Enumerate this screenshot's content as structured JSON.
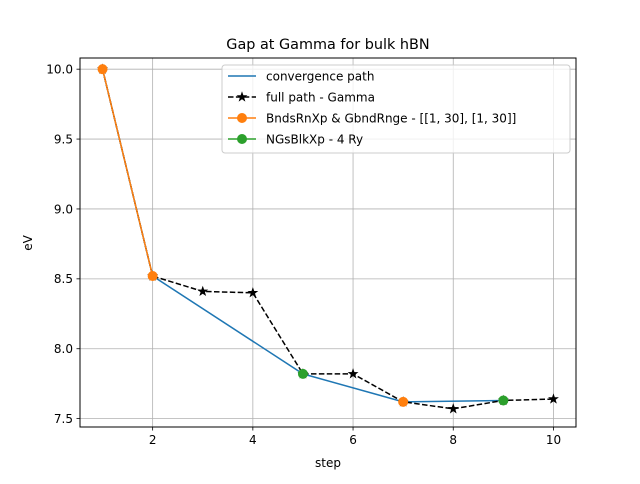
{
  "chart_data": {
    "type": "line",
    "title": "Gap at Gamma for bulk hBN",
    "xlabel": "step",
    "ylabel": "eV",
    "xlim": [
      0.55,
      10.45
    ],
    "ylim": [
      7.44,
      10.08
    ],
    "xticks": [
      2,
      4,
      6,
      8,
      10
    ],
    "yticks": [
      7.5,
      8.0,
      8.5,
      9.0,
      9.5,
      10.0
    ],
    "xtick_labels": [
      "2",
      "4",
      "6",
      "8",
      "10"
    ],
    "ytick_labels": [
      "7.5",
      "8.0",
      "8.5",
      "9.0",
      "9.5",
      "10.0"
    ],
    "grid": true,
    "legend_position": "top-right",
    "series": [
      {
        "name": "convergence path",
        "style": "solid",
        "marker": "none",
        "color": "#1f77b4",
        "x": [
          1,
          2,
          5,
          7,
          9
        ],
        "y": [
          10.0,
          8.52,
          7.82,
          7.62,
          7.63
        ]
      },
      {
        "name": "full path - Gamma",
        "style": "dashed",
        "marker": "star",
        "color": "#000000",
        "x": [
          1,
          2,
          3,
          4,
          5,
          6,
          7,
          8,
          9,
          10
        ],
        "y": [
          10.0,
          8.52,
          8.41,
          8.4,
          7.82,
          7.82,
          7.62,
          7.57,
          7.63,
          7.64
        ]
      },
      {
        "name": "BndsRnXp & GbndRnge  - [[1, 30], [1, 30]]",
        "style": "solid",
        "marker": "circle",
        "color": "#ff7f0e",
        "x": [
          1,
          2
        ],
        "y": [
          10.0,
          8.52
        ],
        "extra_points": [
          {
            "x": 7,
            "y": 7.62
          }
        ]
      },
      {
        "name": "NGsBlkXp - 4 Ry",
        "style": "none",
        "marker": "circle",
        "color": "#2ca02c",
        "x": [
          5,
          9
        ],
        "y": [
          7.82,
          7.63
        ]
      }
    ]
  }
}
